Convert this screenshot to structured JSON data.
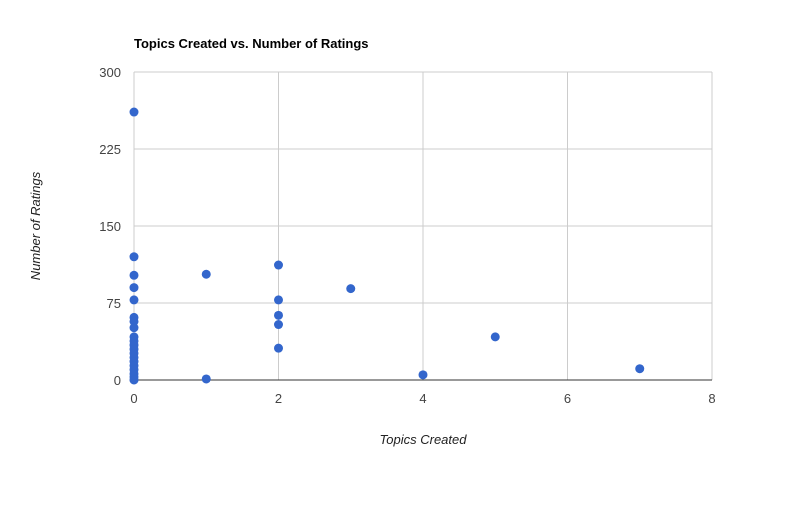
{
  "chart_data": {
    "type": "scatter",
    "title": "Topics Created vs. Number of Ratings",
    "xlabel": "Topics Created",
    "ylabel": "Number of Ratings",
    "xlim": [
      0,
      8
    ],
    "ylim": [
      0,
      300
    ],
    "xticks": [
      "0",
      "2",
      "4",
      "6",
      "8"
    ],
    "yticks": [
      "0",
      "75",
      "150",
      "225",
      "300"
    ],
    "grid": true,
    "legend": "none",
    "point_color": "#3366cc",
    "points": [
      {
        "x": 0,
        "y": 261
      },
      {
        "x": 0,
        "y": 120
      },
      {
        "x": 0,
        "y": 102
      },
      {
        "x": 0,
        "y": 90
      },
      {
        "x": 0,
        "y": 78
      },
      {
        "x": 0,
        "y": 61
      },
      {
        "x": 0,
        "y": 57
      },
      {
        "x": 0,
        "y": 51
      },
      {
        "x": 0,
        "y": 42
      },
      {
        "x": 0,
        "y": 38
      },
      {
        "x": 0,
        "y": 34
      },
      {
        "x": 0,
        "y": 30
      },
      {
        "x": 0,
        "y": 26
      },
      {
        "x": 0,
        "y": 22
      },
      {
        "x": 0,
        "y": 18
      },
      {
        "x": 0,
        "y": 14
      },
      {
        "x": 0,
        "y": 10
      },
      {
        "x": 0,
        "y": 6
      },
      {
        "x": 0,
        "y": 3
      },
      {
        "x": 0,
        "y": 0
      },
      {
        "x": 1,
        "y": 103
      },
      {
        "x": 1,
        "y": 1
      },
      {
        "x": 2,
        "y": 112
      },
      {
        "x": 2,
        "y": 78
      },
      {
        "x": 2,
        "y": 63
      },
      {
        "x": 2,
        "y": 54
      },
      {
        "x": 2,
        "y": 31
      },
      {
        "x": 3,
        "y": 89
      },
      {
        "x": 4,
        "y": 5
      },
      {
        "x": 5,
        "y": 42
      },
      {
        "x": 7,
        "y": 11
      }
    ]
  }
}
